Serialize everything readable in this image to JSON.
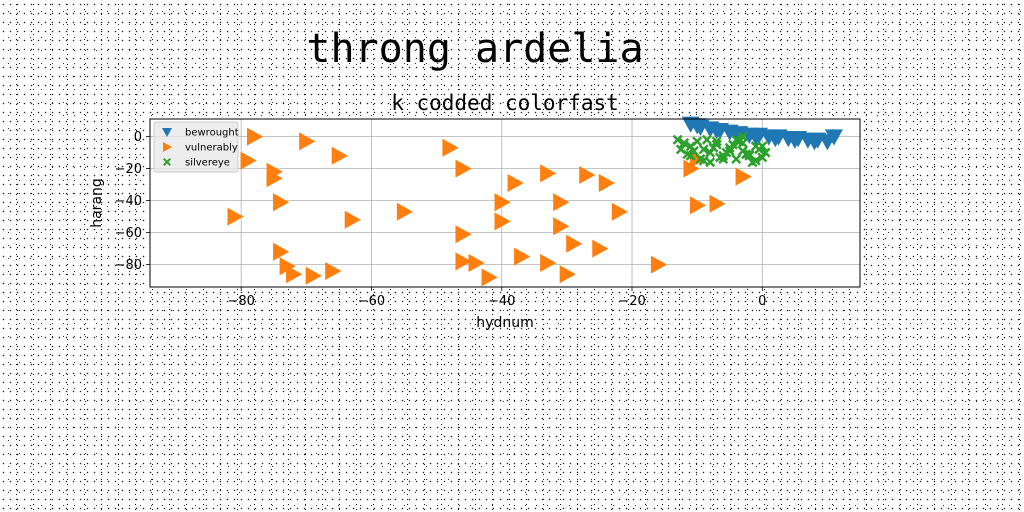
{
  "chart_data": {
    "type": "scatter",
    "suptitle": "throng ardelia",
    "title": "k codded colorfast",
    "xlabel": "hydnum",
    "ylabel": "harang",
    "xlim": [
      -94,
      15
    ],
    "ylim": [
      -94,
      11
    ],
    "xticks": [
      -80,
      -60,
      -40,
      -20,
      0
    ],
    "yticks": [
      0,
      -20,
      -40,
      -60,
      -80
    ],
    "xtick_labels": [
      "−80",
      "−60",
      "−40",
      "−20",
      "0"
    ],
    "ytick_labels": [
      "0",
      "−20",
      "−40",
      "−60",
      "−80"
    ],
    "grid": true,
    "legend_position": "upper-left",
    "series": [
      {
        "name": "bewrought",
        "marker": "triangle-down",
        "color": "#1f77b4",
        "x": [
          -11,
          -9.5,
          -8,
          -6.5,
          -5,
          -3.5,
          -2,
          -0.5,
          1,
          2.5,
          4,
          5.5,
          7,
          8.5,
          10,
          11,
          -10,
          -7,
          -4,
          -1,
          2,
          5,
          8
        ],
        "y": [
          8,
          6,
          5,
          4,
          3,
          2,
          1,
          1,
          0,
          0,
          -1,
          -1,
          -2,
          -2,
          -3,
          0,
          7,
          4,
          2,
          0,
          -1,
          -2,
          -3
        ]
      },
      {
        "name": "vulnerably",
        "marker": "triangle-right",
        "color": "#ff7f0e",
        "x": [
          -78,
          -70,
          -65,
          -48,
          -79,
          -75,
          -75,
          -74,
          -46,
          -38,
          -33,
          -27,
          -24,
          -11,
          -40,
          -31,
          -81,
          -55,
          -63,
          -46,
          -40,
          -31,
          -22,
          -74,
          -29,
          -25,
          -37,
          -73,
          -72,
          -69,
          -66,
          -46,
          -44,
          -33,
          -16,
          -30,
          -42,
          -3,
          -10,
          -7,
          -10
        ],
        "y": [
          0,
          -3,
          -12,
          -7,
          -15,
          -22,
          -26,
          -41,
          -20,
          -29,
          -23,
          -24,
          -29,
          -20,
          -41,
          -41,
          -50,
          -47,
          -52,
          -61,
          -53,
          -56,
          -47,
          -72,
          -67,
          -70,
          -75,
          -81,
          -86,
          -87,
          -84,
          -78,
          -79,
          -79,
          -80,
          -86,
          -88,
          -25,
          -43,
          -42,
          -14
        ]
      },
      {
        "name": "silvereye",
        "marker": "x-filled",
        "color": "#2ca02c",
        "x": [
          -13,
          -12,
          -11,
          -10,
          -9,
          -8,
          -7,
          -6,
          -5,
          -4,
          -3,
          -2,
          -1,
          0,
          -12.5,
          -11,
          -9,
          -7,
          -5,
          -3,
          -1,
          0.5,
          -10.5,
          -8.5,
          -6.5,
          -4.5,
          -2.5,
          -0.5,
          -9.5,
          -7.5,
          -5.5,
          -3.5,
          -1.5,
          0,
          -11.5,
          -8,
          -6,
          -4,
          -2,
          -3
        ],
        "y": [
          -2,
          -4,
          -6,
          -3,
          -8,
          -10,
          -5,
          -12,
          -7,
          -14,
          -9,
          -11,
          -6,
          -13,
          -8,
          -12,
          -15,
          -3,
          -9,
          -4,
          -15,
          -10,
          -9,
          -2,
          -13,
          -5,
          -11,
          -8,
          -14,
          -7,
          -10,
          -3,
          -16,
          -6,
          -11,
          -16,
          -14,
          -2,
          -12,
          0
        ]
      }
    ]
  }
}
